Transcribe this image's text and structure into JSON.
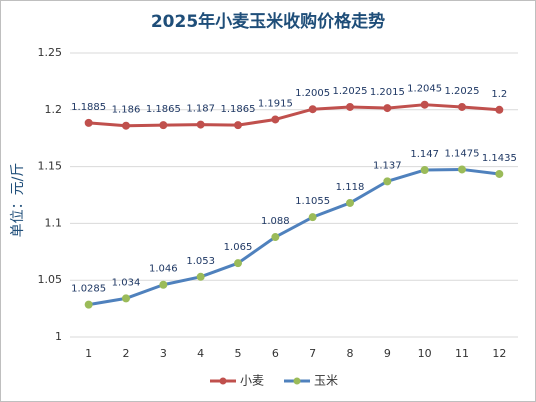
{
  "chart_data": {
    "type": "line",
    "title": "2025年小麦玉米收购价格走势",
    "y_label": "单位：元/斤",
    "categories": [
      "1",
      "2",
      "3",
      "4",
      "5",
      "6",
      "7",
      "8",
      "9",
      "10",
      "11",
      "12"
    ],
    "series": [
      {
        "name": "小麦",
        "color": "#c0504d",
        "marker_color": "#c0504d",
        "values": [
          1.1885,
          1.186,
          1.1865,
          1.187,
          1.1865,
          1.1915,
          1.2005,
          1.2025,
          1.2015,
          1.2045,
          1.2025,
          1.2
        ]
      },
      {
        "name": "玉米",
        "color": "#4f81bd",
        "marker_color": "#9bbb59",
        "values": [
          1.0285,
          1.034,
          1.046,
          1.053,
          1.065,
          1.088,
          1.1055,
          1.118,
          1.137,
          1.147,
          1.1475,
          1.1435
        ]
      }
    ],
    "ylim": [
      1,
      1.25
    ],
    "yticks": [
      1,
      1.05,
      1.1,
      1.15,
      1.2,
      1.25
    ],
    "grid": true,
    "legend": "bottom"
  }
}
